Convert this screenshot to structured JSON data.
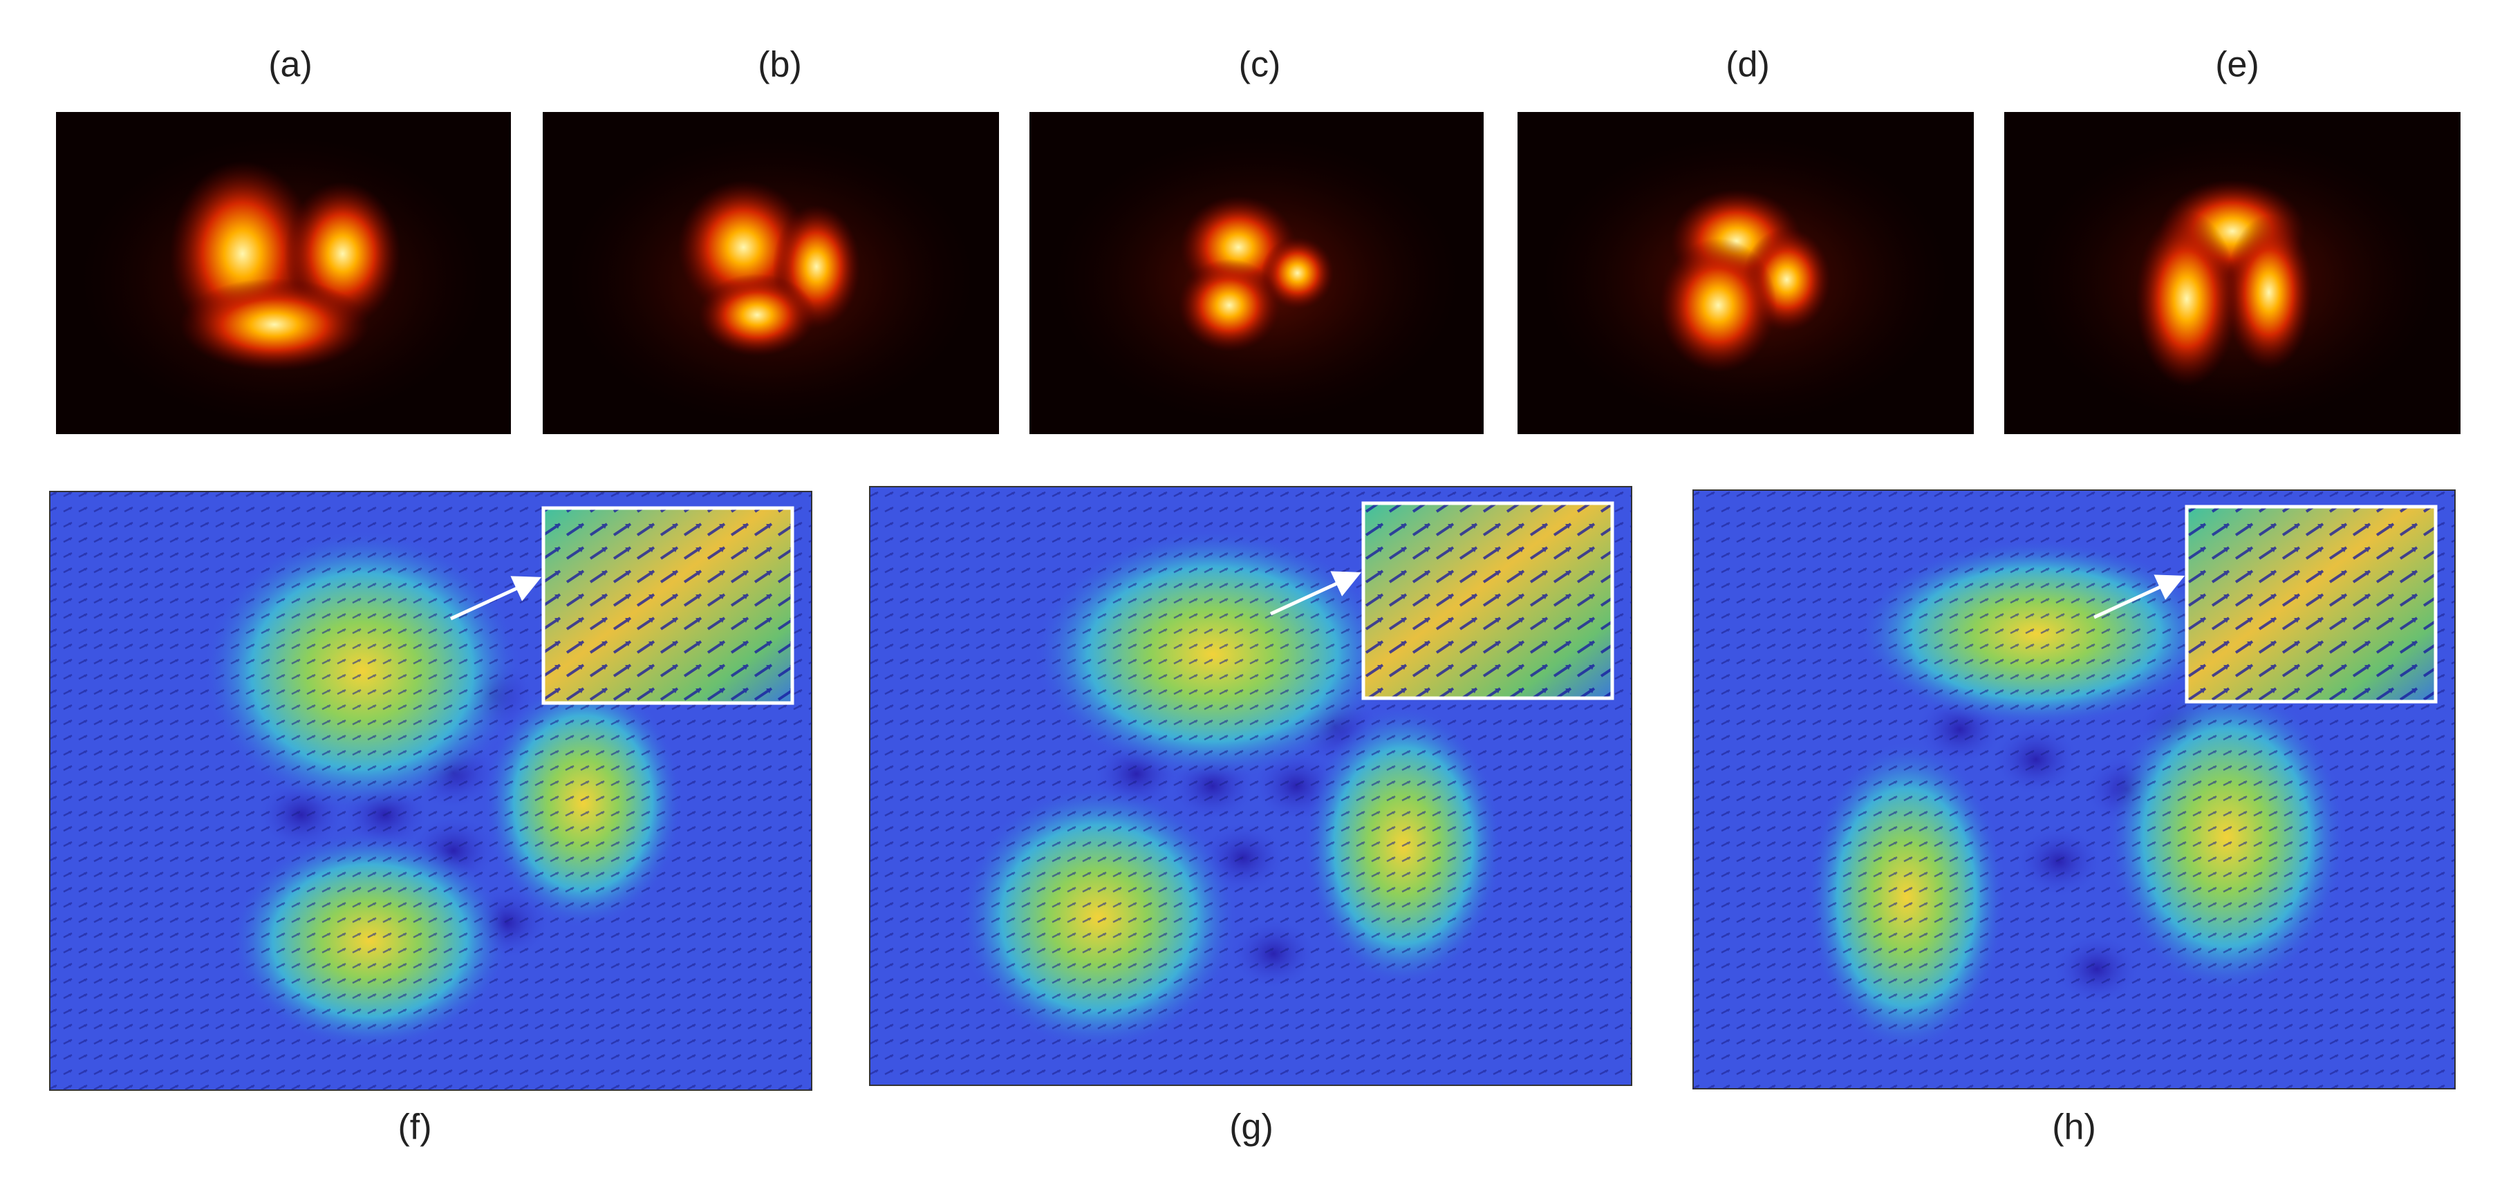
{
  "panels": {
    "top": [
      "(a)",
      "(b)",
      "(c)",
      "(d)",
      "(e)"
    ],
    "bottom": [
      "(f)",
      "(g)",
      "(h)"
    ]
  }
}
